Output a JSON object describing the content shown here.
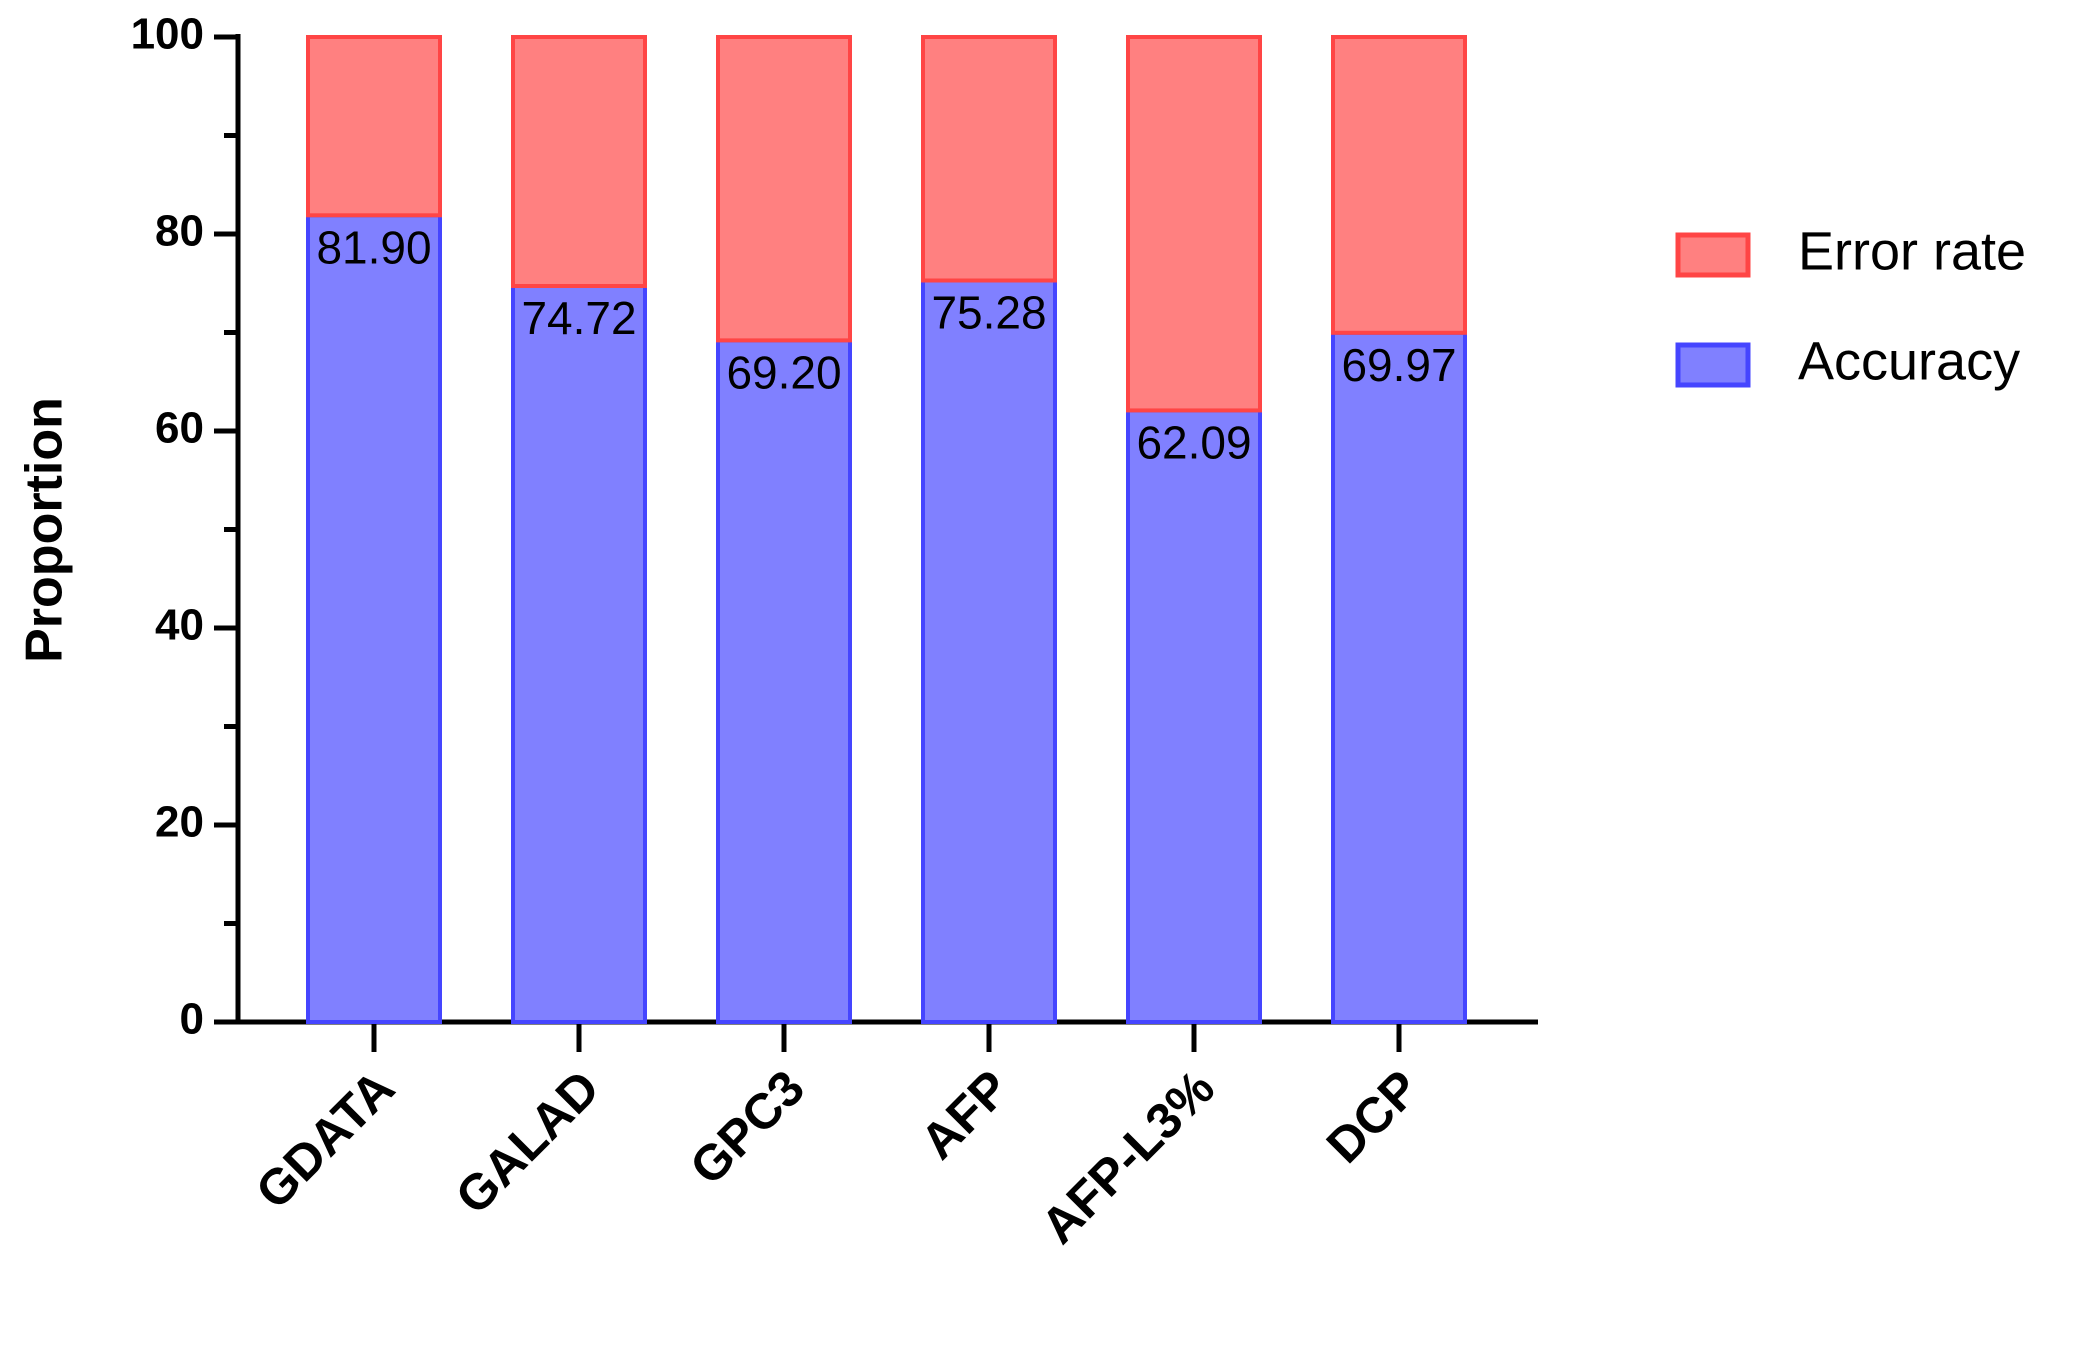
{
  "chart_data": {
    "type": "stacked_bar",
    "y_label": "Proportion",
    "categories": [
      "GDATA",
      "GALAD",
      "GPC3",
      "AFP",
      "AFP-L3%",
      "DCP"
    ],
    "series": [
      {
        "name": "Accuracy",
        "color": "#8080ff",
        "edge_color": "#4545ff",
        "values": [
          81.9,
          74.72,
          69.2,
          75.28,
          62.09,
          69.97
        ],
        "value_labels": [
          "81.90",
          "74.72",
          "69.20",
          "75.28",
          "62.09",
          "69.97"
        ]
      },
      {
        "name": "Error rate",
        "color": "#ff8080",
        "edge_color": "#ff4545",
        "values": [
          18.1,
          25.28,
          30.8,
          24.72,
          37.91,
          30.03
        ]
      }
    ],
    "ylim": [
      0,
      100
    ],
    "yticks": [
      0,
      20,
      40,
      60,
      80,
      100
    ],
    "yminor_ticks": [
      10,
      30,
      50,
      70,
      90
    ],
    "grid": false,
    "legend": "right"
  }
}
